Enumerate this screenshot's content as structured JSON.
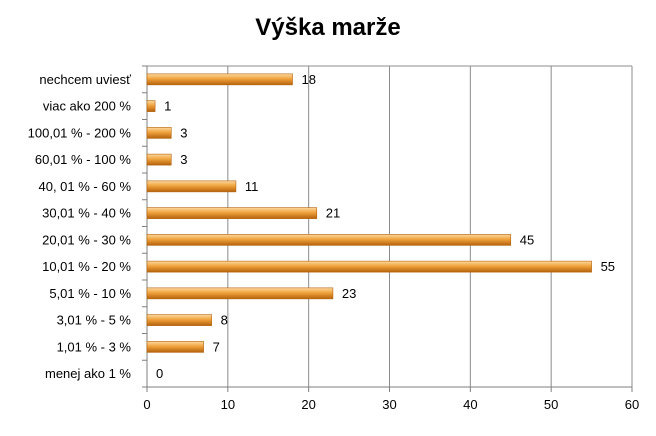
{
  "chart_data": {
    "type": "bar",
    "orientation": "horizontal",
    "title": "Výška marže",
    "xlabel": "",
    "ylabel": "",
    "categories": [
      "nechcem uviesť",
      "viac ako 200 %",
      "100,01 % - 200 %",
      "60,01 % - 100 %",
      "40, 01 % - 60 %",
      "30,01 % - 40 %",
      "20,01 % - 30 %",
      "10,01 % - 20 %",
      "5,01 % - 10 %",
      "3,01 % - 5 %",
      "1,01 % - 3 %",
      "menej ako 1 %"
    ],
    "values": [
      18,
      1,
      3,
      3,
      11,
      21,
      45,
      55,
      23,
      8,
      7,
      0
    ],
    "xlim": [
      0,
      60
    ],
    "xticks": [
      0,
      10,
      20,
      30,
      40,
      50,
      60
    ],
    "grid": "vertical",
    "legend": "none",
    "colors": {
      "bar_light": "#fcd9a0",
      "bar_mid": "#f0a23c",
      "bar_dark": "#b4620c",
      "grid": "#8c8c8c",
      "axis": "#7f7f7f"
    }
  }
}
